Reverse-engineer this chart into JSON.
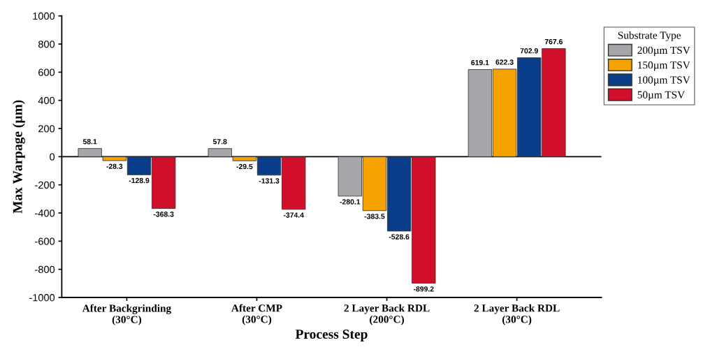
{
  "chart_data": {
    "type": "bar",
    "xlabel": "Process Step",
    "ylabel": "Max Warpage (µm)",
    "categories": [
      "After Backgrinding\n(30°C)",
      "After CMP\n(30°C)",
      "2 Layer Back RDL\n(200°C)",
      "2 Layer Back RDL\n(30°C)"
    ],
    "series": [
      {
        "name": "200µm TSV",
        "color": "#a6a6aa",
        "values": [
          58.1,
          57.8,
          -280.1,
          619.1
        ]
      },
      {
        "name": "150µm TSV",
        "color": "#f5a100",
        "values": [
          -28.3,
          -29.5,
          -383.5,
          622.3
        ]
      },
      {
        "name": "100µm TSV",
        "color": "#0a3d8a",
        "values": [
          -128.9,
          -131.3,
          -528.6,
          702.9
        ]
      },
      {
        "name": "50µm TSV",
        "color": "#d0102a",
        "values": [
          -368.3,
          -374.4,
          -899.2,
          767.6
        ]
      }
    ],
    "legend_title": "Substrate Type",
    "legend": "top right",
    "ylim": [
      -1000,
      1000
    ],
    "yticks": [
      -1000,
      -800,
      -600,
      -400,
      -200,
      0,
      200,
      400,
      600,
      800,
      1000
    ],
    "ref_lines": [
      {
        "axis": "y",
        "value": 0,
        "color": "#000000"
      }
    ],
    "data_labels": true,
    "grid": false
  }
}
